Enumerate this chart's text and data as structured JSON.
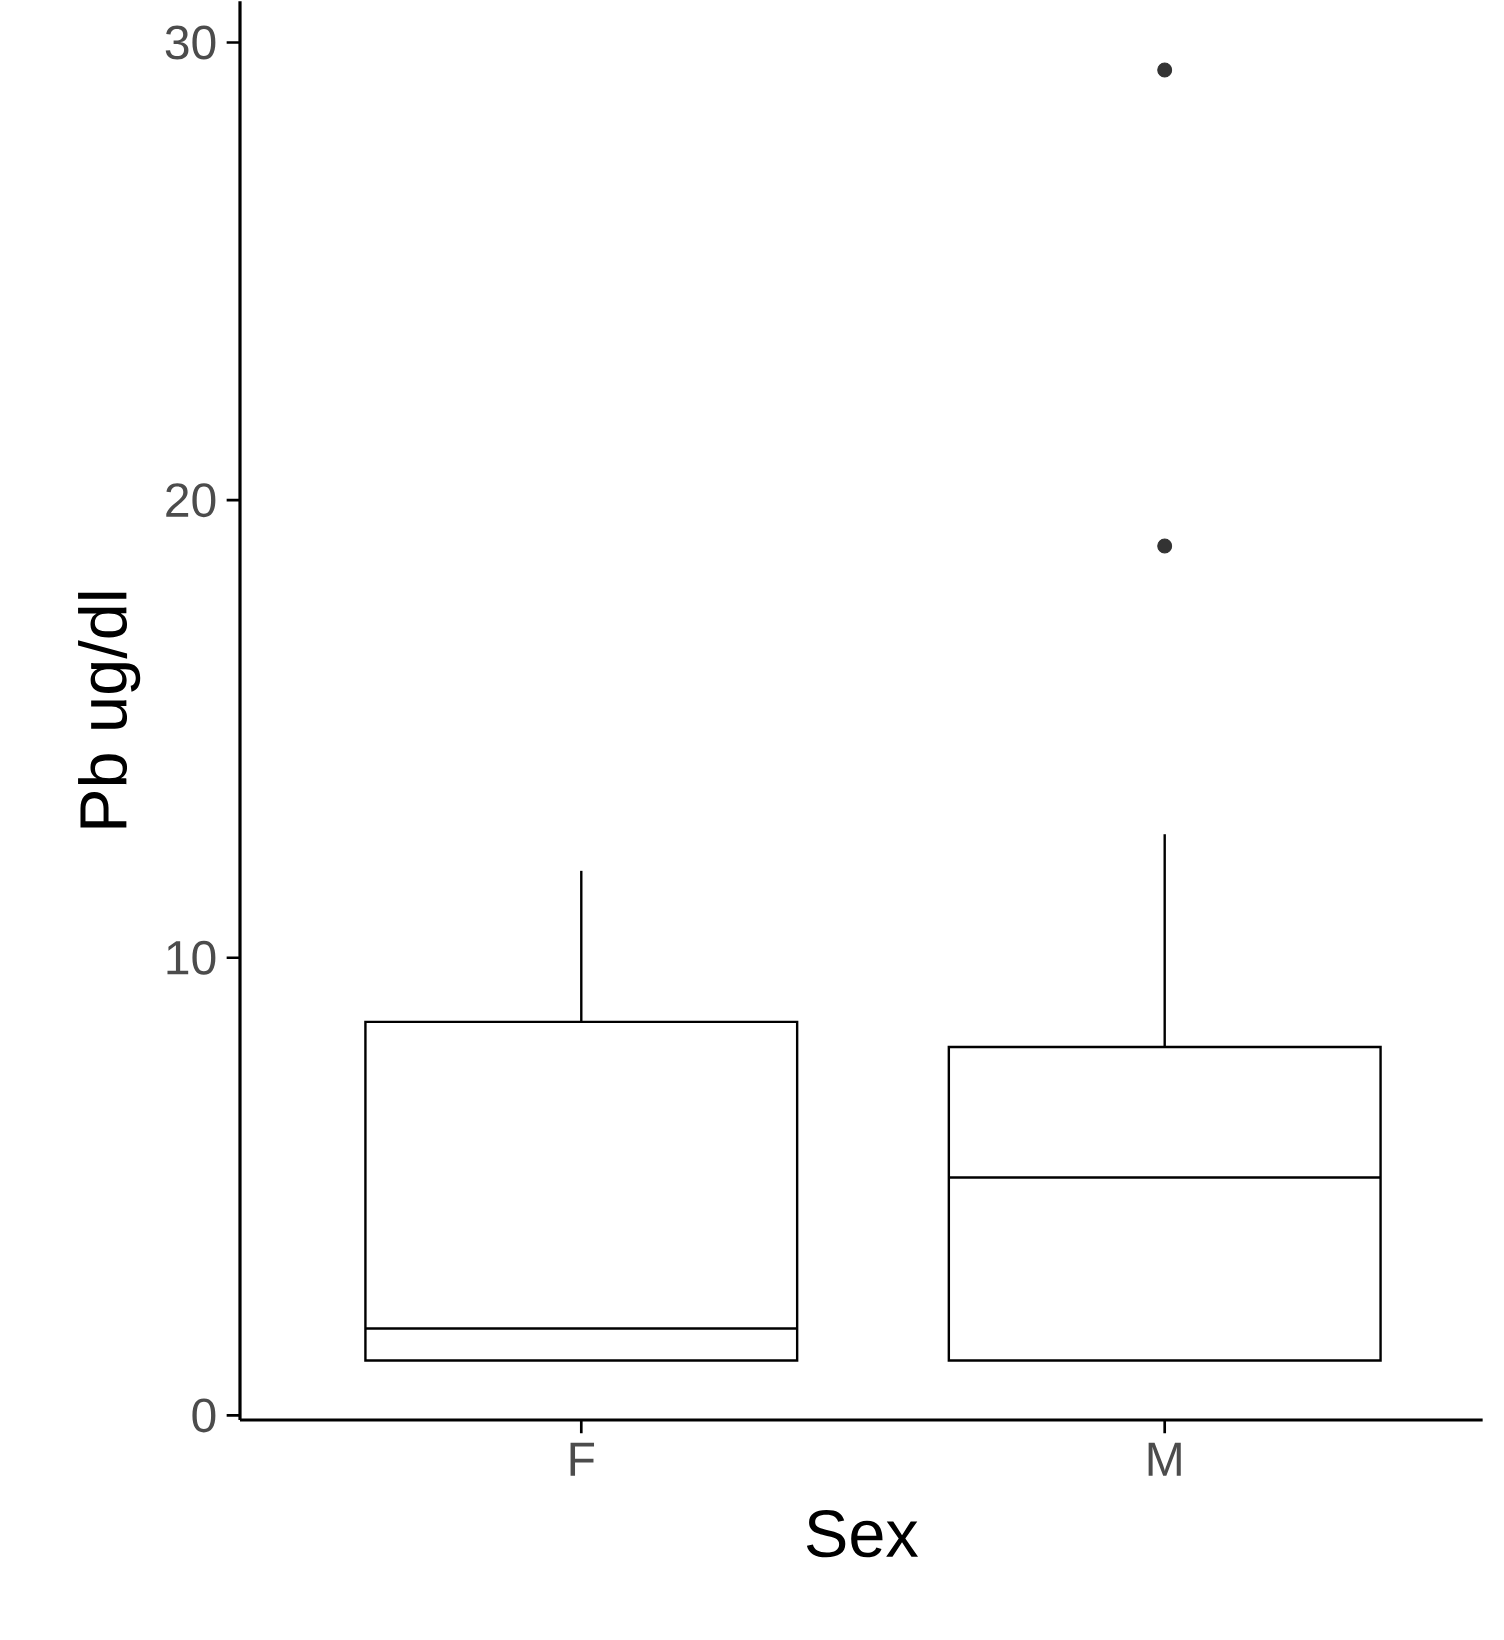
{
  "chart_data": {
    "type": "box",
    "xlabel": "Sex",
    "ylabel": "Pb ug/dl",
    "categories": [
      "F",
      "M"
    ],
    "boxes": [
      {
        "low": 1.2,
        "q1": 1.2,
        "median": 1.9,
        "q3": 8.6,
        "high": 11.9
      },
      {
        "low": 1.2,
        "q1": 1.2,
        "median": 5.2,
        "q3": 8.05,
        "high": 12.7,
        "outliers": [
          19.0,
          29.4
        ]
      }
    ],
    "ylim": [
      -0.1,
      30.9
    ],
    "yticks": [
      0,
      10,
      20,
      30
    ]
  }
}
